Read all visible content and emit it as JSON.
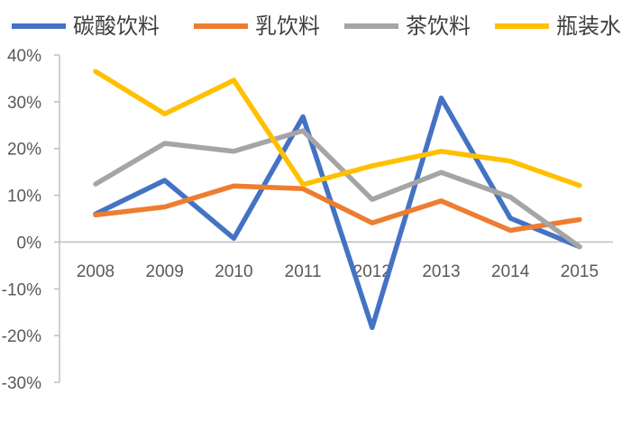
{
  "chart_data": {
    "type": "line",
    "title": "",
    "xlabel": "",
    "ylabel": "",
    "categories": [
      "2008",
      "2009",
      "2010",
      "2011",
      "2012",
      "2013",
      "2014",
      "2015"
    ],
    "ylim": [
      -30,
      40
    ],
    "y_ticks": [
      40,
      30,
      20,
      10,
      0,
      -10,
      -20,
      -30
    ],
    "y_tick_labels": [
      "40%",
      "30%",
      "20%",
      "10%",
      "0%",
      "-10%",
      "-20%",
      "-30%"
    ],
    "grid": false,
    "legend_position": "top",
    "series": [
      {
        "name": "碳酸饮料",
        "color": "#4472c4",
        "values": [
          6,
          13.2,
          0.8,
          26.8,
          -18.3,
          30.8,
          5.1,
          -1
        ]
      },
      {
        "name": "乳饮料",
        "color": "#ed7d31",
        "values": [
          5.8,
          7.5,
          12,
          11.4,
          4.1,
          8.8,
          2.5,
          4.8
        ]
      },
      {
        "name": "茶饮料",
        "color": "#a5a5a5",
        "values": [
          12.4,
          21.1,
          19.4,
          23.8,
          9.1,
          14.9,
          9.6,
          -1
        ]
      },
      {
        "name": "瓶装水",
        "color": "#ffc000",
        "values": [
          36.5,
          27.4,
          34.6,
          12.3,
          16.3,
          19.4,
          17.3,
          12.1
        ]
      }
    ]
  }
}
